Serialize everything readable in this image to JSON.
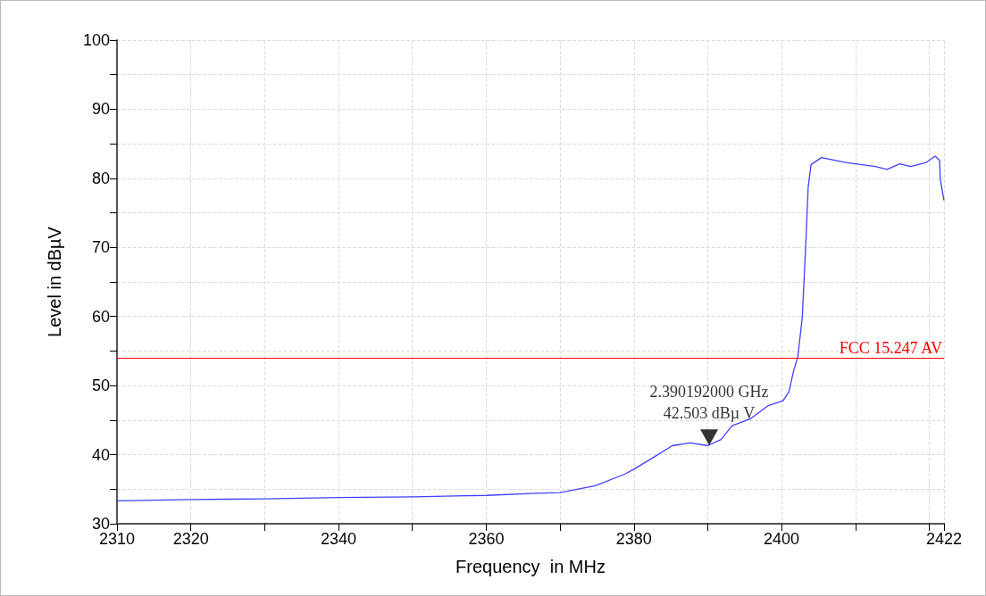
{
  "chart_data": {
    "type": "line",
    "xlabel": "Frequency  in MHz",
    "ylabel": "Level in dBµV",
    "xlim": [
      2310,
      2422
    ],
    "xticks": [
      2310,
      2320,
      {
        "value": 2330,
        "label": null
      },
      2340,
      {
        "value": 2350,
        "label": null
      },
      2360,
      {
        "value": 2370,
        "label": null
      },
      2380,
      {
        "value": 2390,
        "label": null
      },
      2400,
      {
        "value": 2410,
        "label": null
      },
      {
        "value": 2420,
        "label": null
      },
      2422
    ],
    "ylim": [
      30,
      100
    ],
    "yticks": [
      30,
      {
        "value": 35,
        "label": null
      },
      40,
      {
        "value": 45,
        "label": null
      },
      50,
      {
        "value": 55,
        "label": null
      },
      60,
      {
        "value": 65,
        "label": null
      },
      70,
      {
        "value": 75,
        "label": null
      },
      80,
      {
        "value": 85,
        "label": null
      },
      90,
      {
        "value": 95,
        "label": null
      },
      100
    ],
    "grid": true,
    "marker": "none",
    "line_style": "solid",
    "series": [
      {
        "color": "#4040ff",
        "x": [
          2310,
          2320,
          2330,
          2340,
          2350,
          2360,
          2366.7,
          2370,
          2374.8,
          2378.8,
          2380,
          2382.8,
          2385.2,
          2387.6,
          2390,
          2391.8,
          2393.3,
          2395.8,
          2398.2,
          2400.2,
          2401,
          2401.6,
          2402.2,
          2402.8,
          2403.3,
          2403.6,
          2404,
          2405.4,
          2408.7,
          2412.7,
          2414.3,
          2416,
          2417.5,
          2419.6,
          2420.8,
          2421.4,
          2421.5,
          2422
        ],
        "values": [
          33.3,
          33.5,
          33.6,
          33.8,
          33.9,
          34.1,
          34.4,
          34.5,
          35.5,
          37.2,
          37.9,
          39.7,
          41.3,
          41.7,
          41.3,
          42.2,
          44.2,
          45.2,
          47.1,
          47.8,
          49.1,
          52,
          54.2,
          59.8,
          71,
          78.7,
          82,
          83,
          82.3,
          81.7,
          81.3,
          82.1,
          81.7,
          82.3,
          83.2,
          82.6,
          79.8,
          76.8
        ]
      },
      {
        "type": "scatter",
        "marker": "triangle",
        "color": "#000000",
        "x": [
          2390.2
        ],
        "values": [
          42.5
        ]
      }
    ],
    "ref_lines": [
      {
        "axis": "y",
        "value": 54,
        "label": "FCC 15.247 AV",
        "color": "#ff0000"
      }
    ],
    "annotations": [
      "2.390192000 GHz\n42.503 dBµ V"
    ]
  }
}
